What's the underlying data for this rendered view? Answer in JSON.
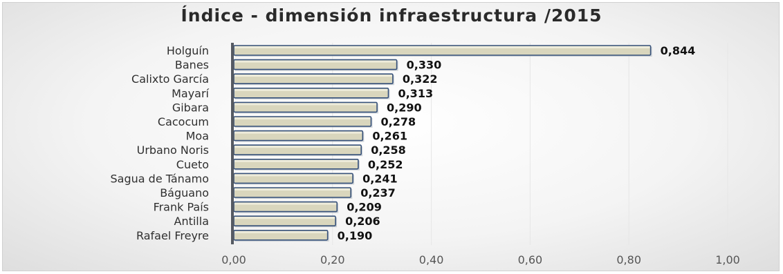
{
  "chart_data": {
    "type": "bar",
    "orientation": "horizontal",
    "title": "Índice - dimensión infraestructura /2015",
    "categories": [
      "Holguín",
      "Banes",
      "Calixto García",
      "Mayarí",
      "Gibara",
      "Cacocum",
      "Moa",
      "Urbano Noris",
      "Cueto",
      "Sagua de Tánamo",
      "Báguano",
      "Frank País",
      "Antilla",
      "Rafael Freyre"
    ],
    "values": [
      0.844,
      0.33,
      0.322,
      0.313,
      0.29,
      0.278,
      0.261,
      0.258,
      0.252,
      0.241,
      0.237,
      0.209,
      0.206,
      0.19
    ],
    "value_labels": [
      "0,844",
      "0,330",
      "0,322",
      "0,313",
      "0,290",
      "0,278",
      "0,261",
      "0,258",
      "0,252",
      "0,241",
      "0,237",
      "0,209",
      "0,206",
      "0,190"
    ],
    "xlim": [
      0,
      1
    ],
    "xticks": [
      0,
      0.2,
      0.4,
      0.6,
      0.8,
      1.0
    ],
    "xtick_labels": [
      "0,00",
      "0,20",
      "0,40",
      "0,60",
      "0,80",
      "1,00"
    ],
    "grid": true,
    "bar_color": "#d9d6bd",
    "bar_edge_color": "#35507a"
  }
}
